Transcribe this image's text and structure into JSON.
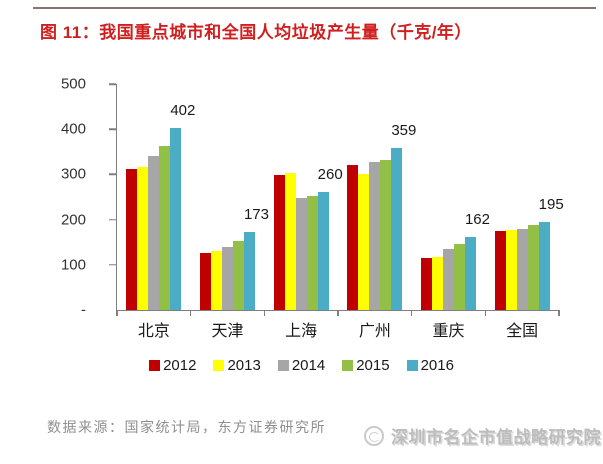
{
  "title": "图 11：我国重点城市和全国人均垃圾产生量（千克/年）",
  "colors": {
    "title": "#d01f1f",
    "top_rule": "#8a7272",
    "axis": "#7f7f7f",
    "source_text": "#8f8f8f",
    "watermark_text": "#b2b2b2"
  },
  "footer": {
    "source": "数据来源：国家统计局，东方证券研究所",
    "watermark": "深圳市名企市值战略研究院"
  },
  "chart_data": {
    "type": "bar",
    "title": "图 11：我国重点城市和全国人均垃圾产生量（千克/年）",
    "categories": [
      "北京",
      "天津",
      "上海",
      "广州",
      "重庆",
      "全国"
    ],
    "series": [
      {
        "name": "2012",
        "color": "#c00000",
        "values": [
          313,
          126,
          298,
          320,
          116,
          175
        ]
      },
      {
        "name": "2013",
        "color": "#ffff00",
        "values": [
          317,
          130,
          304,
          302,
          118,
          177
        ]
      },
      {
        "name": "2014",
        "color": "#a6a6a6",
        "values": [
          340,
          139,
          248,
          327,
          135,
          180
        ]
      },
      {
        "name": "2015",
        "color": "#92c047",
        "values": [
          362,
          152,
          253,
          332,
          147,
          188
        ]
      },
      {
        "name": "2016",
        "color": "#4bacc6",
        "values": [
          402,
          173,
          260,
          359,
          162,
          195
        ]
      }
    ],
    "labeled_series": "2016",
    "data_labels": [
      402,
      173,
      260,
      359,
      162,
      195
    ],
    "xlabel": "",
    "ylabel": "",
    "ylim": [
      0,
      500
    ],
    "yticks": [
      "500",
      "400",
      "300",
      "200",
      "100",
      "-"
    ],
    "grid": false,
    "legend_position": "bottom"
  }
}
